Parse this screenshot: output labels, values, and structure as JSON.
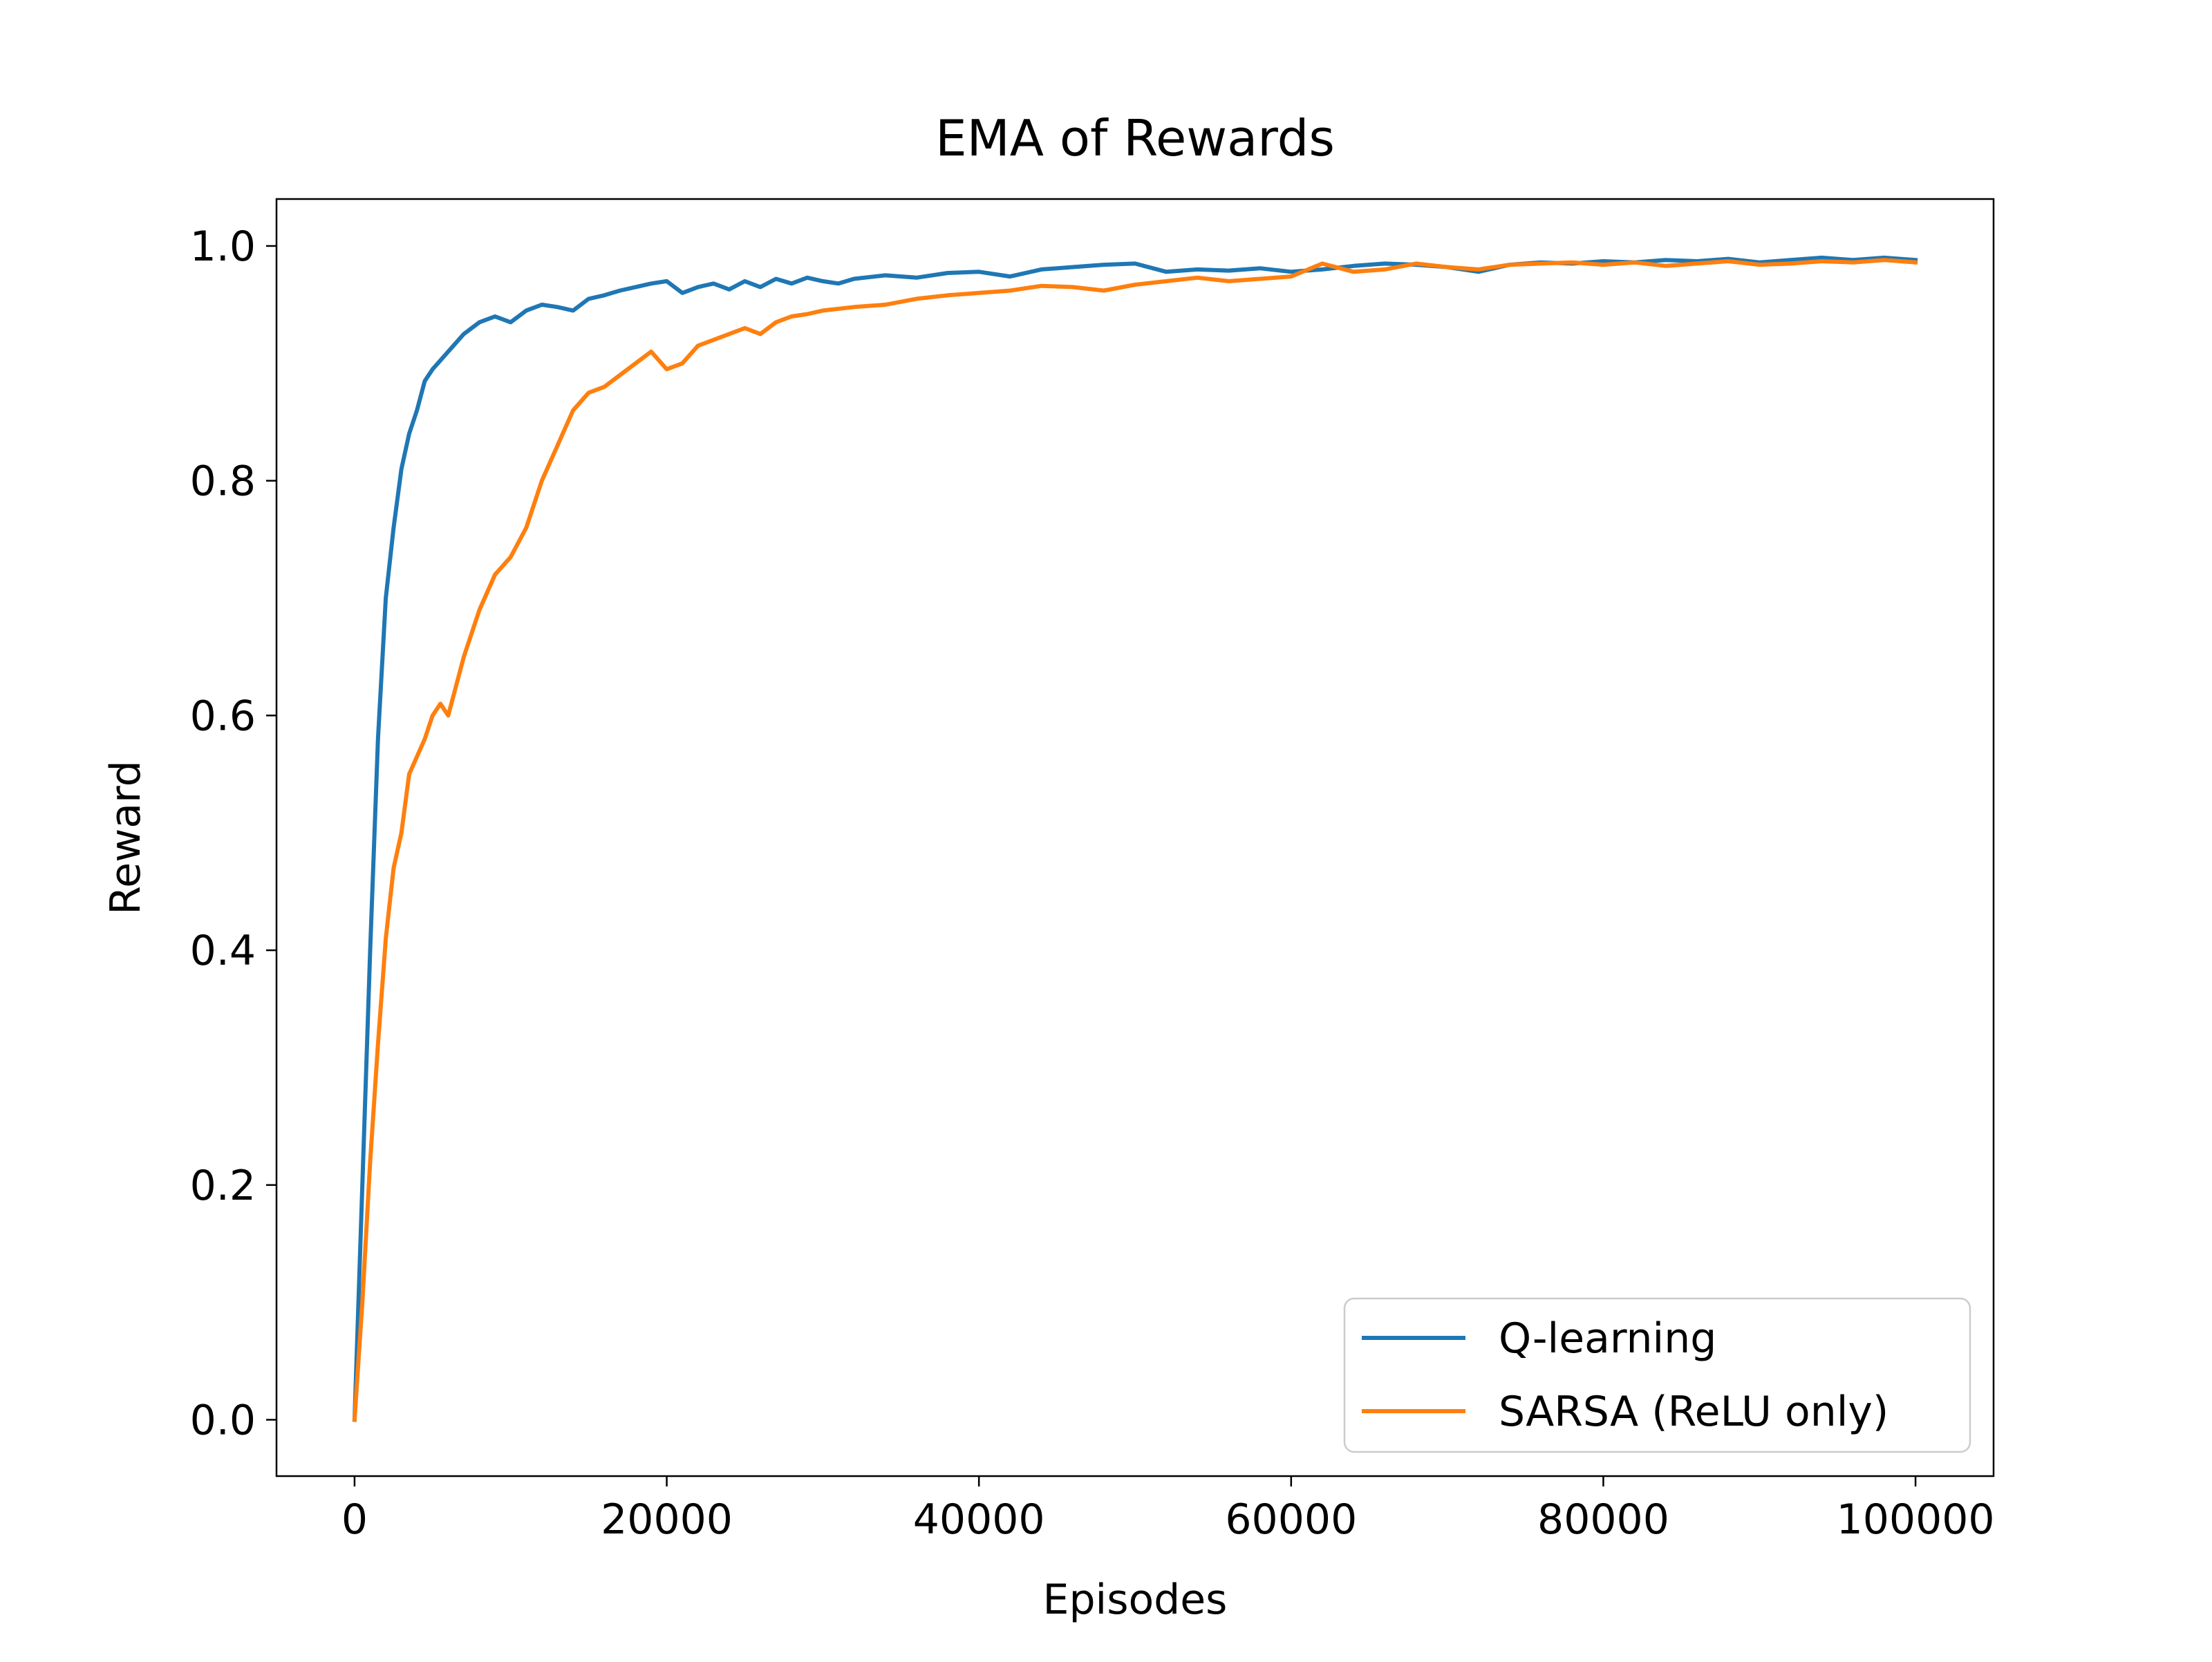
{
  "chart_data": {
    "type": "line",
    "title": "EMA of Rewards",
    "xlabel": "Episodes",
    "ylabel": "Reward",
    "xlim": [
      -5000,
      105000
    ],
    "ylim": [
      -0.048,
      1.04
    ],
    "xticks": [
      0,
      20000,
      40000,
      60000,
      80000,
      100000
    ],
    "xtick_labels": [
      "0",
      "20000",
      "40000",
      "60000",
      "80000",
      "100000"
    ],
    "yticks": [
      0.0,
      0.2,
      0.4,
      0.6,
      0.8,
      1.0
    ],
    "ytick_labels": [
      "0.0",
      "0.2",
      "0.4",
      "0.6",
      "0.8",
      "1.0"
    ],
    "grid": false,
    "legend_position": "lower right",
    "series": [
      {
        "name": "Q-learning",
        "color": "#1f77b4",
        "x": [
          0,
          500,
          1000,
          1500,
          2000,
          2500,
          3000,
          3500,
          4000,
          4500,
          5000,
          6000,
          7000,
          8000,
          9000,
          10000,
          11000,
          12000,
          13000,
          14000,
          15000,
          16000,
          17000,
          18000,
          19000,
          20000,
          21000,
          22000,
          23000,
          24000,
          25000,
          26000,
          27000,
          28000,
          29000,
          30000,
          31000,
          32000,
          34000,
          36000,
          38000,
          40000,
          42000,
          44000,
          46000,
          48000,
          50000,
          52000,
          54000,
          56000,
          58000,
          60000,
          62000,
          64000,
          66000,
          68000,
          70000,
          72000,
          74000,
          76000,
          78000,
          80000,
          82000,
          84000,
          86000,
          88000,
          90000,
          92000,
          94000,
          96000,
          98000,
          100000
        ],
        "y": [
          0.0,
          0.2,
          0.4,
          0.58,
          0.7,
          0.76,
          0.81,
          0.84,
          0.86,
          0.885,
          0.895,
          0.91,
          0.925,
          0.935,
          0.94,
          0.935,
          0.945,
          0.95,
          0.948,
          0.945,
          0.955,
          0.958,
          0.962,
          0.965,
          0.968,
          0.97,
          0.96,
          0.965,
          0.968,
          0.963,
          0.97,
          0.965,
          0.972,
          0.968,
          0.973,
          0.97,
          0.968,
          0.972,
          0.975,
          0.973,
          0.977,
          0.978,
          0.974,
          0.98,
          0.982,
          0.984,
          0.985,
          0.978,
          0.98,
          0.979,
          0.981,
          0.978,
          0.98,
          0.983,
          0.985,
          0.984,
          0.982,
          0.978,
          0.984,
          0.986,
          0.985,
          0.987,
          0.986,
          0.988,
          0.987,
          0.989,
          0.986,
          0.988,
          0.99,
          0.988,
          0.99,
          0.988
        ]
      },
      {
        "name": "SARSA (ReLU only)",
        "color": "#ff7f0e",
        "x": [
          0,
          500,
          1000,
          1500,
          2000,
          2500,
          3000,
          3500,
          4000,
          4500,
          5000,
          5500,
          6000,
          7000,
          8000,
          9000,
          10000,
          11000,
          12000,
          13000,
          14000,
          15000,
          16000,
          17000,
          18000,
          19000,
          20000,
          21000,
          22000,
          23000,
          24000,
          25000,
          26000,
          27000,
          28000,
          29000,
          30000,
          32000,
          34000,
          36000,
          38000,
          40000,
          42000,
          44000,
          46000,
          48000,
          50000,
          52000,
          54000,
          56000,
          58000,
          60000,
          62000,
          64000,
          66000,
          68000,
          70000,
          72000,
          74000,
          76000,
          78000,
          80000,
          82000,
          84000,
          86000,
          88000,
          90000,
          92000,
          94000,
          96000,
          98000,
          100000
        ],
        "y": [
          0.0,
          0.1,
          0.22,
          0.32,
          0.41,
          0.47,
          0.5,
          0.55,
          0.565,
          0.58,
          0.6,
          0.61,
          0.6,
          0.65,
          0.69,
          0.72,
          0.735,
          0.76,
          0.8,
          0.83,
          0.86,
          0.875,
          0.88,
          0.89,
          0.9,
          0.91,
          0.895,
          0.9,
          0.915,
          0.92,
          0.925,
          0.93,
          0.925,
          0.935,
          0.94,
          0.942,
          0.945,
          0.948,
          0.95,
          0.955,
          0.958,
          0.96,
          0.962,
          0.966,
          0.965,
          0.962,
          0.967,
          0.97,
          0.973,
          0.97,
          0.972,
          0.974,
          0.985,
          0.978,
          0.98,
          0.985,
          0.982,
          0.98,
          0.984,
          0.985,
          0.986,
          0.984,
          0.986,
          0.983,
          0.985,
          0.987,
          0.984,
          0.985,
          0.987,
          0.986,
          0.988,
          0.986
        ]
      }
    ]
  }
}
